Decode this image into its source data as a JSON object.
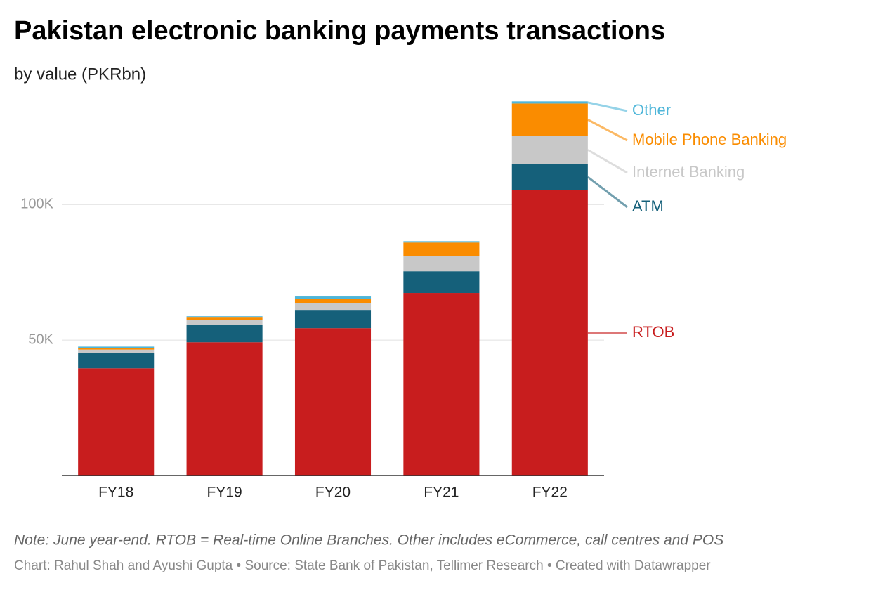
{
  "chart_data": {
    "type": "stacked-bar",
    "title": "Pakistan electronic banking payments transactions",
    "subtitle": "by value (PKRbn)",
    "categories": [
      "FY18",
      "FY19",
      "FY20",
      "FY21",
      "FY22"
    ],
    "series": [
      {
        "name": "RTOB",
        "color": "#c81d1e",
        "values": [
          39600,
          49200,
          54400,
          67400,
          105400
        ]
      },
      {
        "name": "ATM",
        "color": "#15607a",
        "values": [
          5700,
          6500,
          6500,
          8000,
          9600
        ]
      },
      {
        "name": "Internet Banking",
        "color": "#c8c8c8",
        "values": [
          1200,
          1800,
          2800,
          5700,
          10400
        ]
      },
      {
        "name": "Mobile Phone Banking",
        "color": "#fa8c00",
        "values": [
          600,
          800,
          1600,
          4900,
          11900
        ]
      },
      {
        "name": "Other",
        "color": "#4fb6d9",
        "values": [
          500,
          500,
          800,
          500,
          800
        ]
      }
    ],
    "ylim": [
      0,
      140000
    ],
    "yticks": [
      {
        "value": 50000,
        "label": "50K"
      },
      {
        "value": 100000,
        "label": "100K"
      }
    ],
    "grid": true,
    "note": "Note: June year-end. RTOB = Real-time Online Branches. Other includes eCommerce, call centres and POS",
    "credit": "Chart: Rahul Shah and Ayushi Gupta • Source: State Bank of Pakistan, Tellimer Research • Created with Datawrapper"
  }
}
